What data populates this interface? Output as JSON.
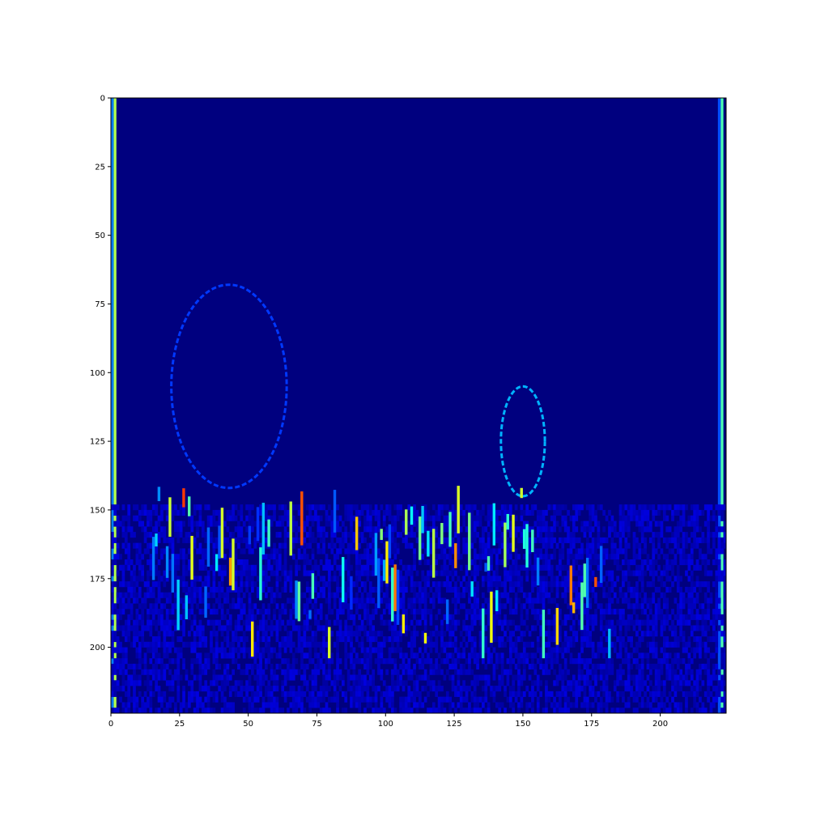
{
  "chart_data": {
    "type": "heatmap",
    "colormap": "jet",
    "background_color": "#00007f",
    "image_shape": [
      224,
      224
    ],
    "xlim": [
      0,
      224
    ],
    "ylim": [
      224,
      0
    ],
    "xticks": [
      0,
      25,
      50,
      75,
      100,
      125,
      150,
      175,
      200
    ],
    "yticks": [
      0,
      25,
      50,
      75,
      100,
      125,
      150,
      175,
      200
    ],
    "grid": false,
    "legend": "none",
    "features": [
      {
        "kind": "column",
        "x": 1,
        "y0": 0,
        "y1": 224,
        "value": 0.55
      },
      {
        "kind": "column",
        "x": 222,
        "y0": 0,
        "y1": 224,
        "value": 0.45
      },
      {
        "kind": "ellipse",
        "cx": 43,
        "cy": 105,
        "rx": 21,
        "ry": 37,
        "value": 0.18
      },
      {
        "kind": "ellipse",
        "cx": 150,
        "cy": 125,
        "rx": 8,
        "ry": 20,
        "value": 0.3
      },
      {
        "kind": "band",
        "x0": 0,
        "x1": 224,
        "y0": 148,
        "y1": 224,
        "value": 0.08
      },
      {
        "kind": "text_region",
        "x0": 15,
        "x1": 182,
        "y0": 140,
        "y1": 204,
        "value": 0.55
      }
    ]
  }
}
